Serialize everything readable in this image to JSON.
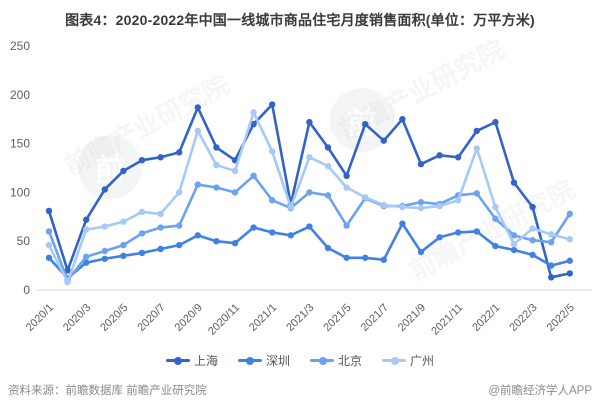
{
  "title": "图表4：2020-2022年中国一线城市商品住宅月度销售面积(单位：万平方米)",
  "footer": {
    "source": "资料来源：前瞻数据库 前瞻产业研究院",
    "brand": "@前瞻经济学人APP"
  },
  "watermark": {
    "text": "前瞻产业研究院",
    "logo_glyph": "前"
  },
  "chart_data": {
    "type": "line",
    "x": [
      "2020/1",
      "2020/2",
      "2020/3",
      "2020/4",
      "2020/5",
      "2020/6",
      "2020/7",
      "2020/8",
      "2020/9",
      "2020/10",
      "2020/11",
      "2020/12",
      "2021/1",
      "2021/2",
      "2021/3",
      "2021/4",
      "2021/5",
      "2021/6",
      "2021/7",
      "2021/8",
      "2021/9",
      "2021/10",
      "2021/11",
      "2021/12",
      "2022/1",
      "2022/2",
      "2022/3",
      "2022/4",
      "2022/5"
    ],
    "x_ticks_shown": [
      "2020/1",
      "2020/3",
      "2020/5",
      "2020/7",
      "2020/9",
      "2020/11",
      "2021/1",
      "2021/3",
      "2021/5",
      "2021/7",
      "2021/9",
      "2021/11",
      "2022/1",
      "2022/3",
      "2022/5"
    ],
    "y_ticks": [
      0,
      50,
      100,
      150,
      200,
      250
    ],
    "ylim": [
      0,
      250
    ],
    "grid": false,
    "legend_position": "bottom",
    "axis_color": "#d9d9d9",
    "tick_label_color": "#5e5e5e",
    "series": [
      {
        "name": "上海",
        "color": "#3163c8",
        "values": [
          81,
          20,
          72,
          103,
          122,
          133,
          136,
          141,
          187,
          146,
          133,
          170,
          190,
          88,
          172,
          146,
          117,
          170,
          153,
          175,
          129,
          138,
          136,
          163,
          172,
          110,
          85,
          13,
          17
        ]
      },
      {
        "name": "深圳",
        "color": "#4180e4",
        "values": [
          33,
          12,
          28,
          32,
          35,
          38,
          42,
          46,
          56,
          50,
          48,
          64,
          59,
          56,
          65,
          43,
          33,
          33,
          31,
          68,
          39,
          54,
          59,
          60,
          45,
          41,
          36,
          25,
          30
        ]
      },
      {
        "name": "北京",
        "color": "#6ca2ef",
        "values": [
          60,
          10,
          34,
          40,
          46,
          58,
          64,
          66,
          108,
          105,
          100,
          117,
          92,
          84,
          100,
          97,
          66,
          94,
          86,
          86,
          90,
          88,
          97,
          99,
          73,
          56,
          51,
          49,
          78
        ]
      },
      {
        "name": "广州",
        "color": "#a6c9f6",
        "values": [
          46,
          8,
          62,
          65,
          70,
          80,
          78,
          100,
          163,
          128,
          122,
          182,
          142,
          85,
          136,
          127,
          105,
          95,
          87,
          85,
          84,
          86,
          92,
          145,
          85,
          47,
          63,
          57,
          52
        ]
      }
    ]
  }
}
